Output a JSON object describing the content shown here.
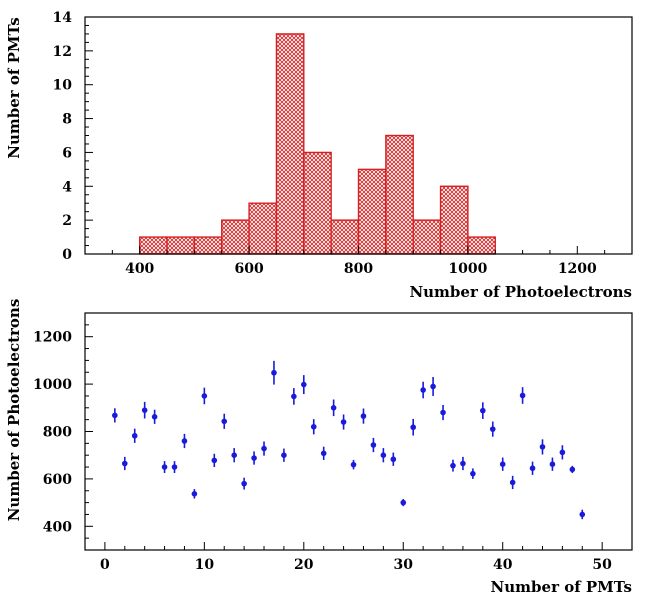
{
  "chart_data": [
    {
      "type": "histogram",
      "xlabel": "Number of Photoelectrons",
      "ylabel": "Number of PMTs",
      "xlim": [
        300,
        1300
      ],
      "ylim": [
        0,
        14
      ],
      "xticks": [
        400,
        600,
        800,
        1000,
        1200
      ],
      "yticks": [
        0,
        2,
        4,
        6,
        8,
        10,
        12,
        14
      ],
      "bin_edges": [
        400,
        450,
        500,
        550,
        600,
        650,
        700,
        750,
        800,
        850,
        900,
        950,
        1000,
        1050
      ],
      "counts": [
        1,
        1,
        1,
        2,
        3,
        13,
        6,
        2,
        5,
        7,
        2,
        4,
        1
      ],
      "color": "#d42020"
    },
    {
      "type": "scatter",
      "xlabel": "Number of PMTs",
      "ylabel": "Number of Photoelectrons",
      "xlim": [
        -2,
        53
      ],
      "ylim": [
        300,
        1300
      ],
      "xticks": [
        0,
        10,
        20,
        30,
        40,
        50
      ],
      "yticks": [
        400,
        600,
        800,
        1000,
        1200
      ],
      "x": [
        1,
        2,
        3,
        4,
        5,
        6,
        7,
        8,
        9,
        10,
        11,
        12,
        13,
        14,
        15,
        16,
        17,
        18,
        19,
        20,
        21,
        22,
        23,
        24,
        25,
        26,
        27,
        28,
        29,
        30,
        31,
        32,
        33,
        34,
        35,
        36,
        37,
        38,
        39,
        40,
        41,
        42,
        43,
        44,
        45,
        46,
        47,
        48
      ],
      "y": [
        868,
        665,
        782,
        890,
        862,
        650,
        650,
        760,
        537,
        950,
        678,
        843,
        700,
        580,
        688,
        728,
        1048,
        700,
        948,
        998,
        820,
        708,
        900,
        840,
        660,
        865,
        743,
        700,
        683,
        500,
        818,
        975,
        990,
        880,
        656,
        665,
        622,
        888,
        810,
        662,
        585,
        952,
        645,
        735,
        662,
        712,
        640,
        450
      ],
      "yerr": [
        30,
        28,
        30,
        35,
        30,
        25,
        25,
        30,
        20,
        35,
        28,
        32,
        30,
        25,
        28,
        30,
        50,
        28,
        35,
        40,
        32,
        28,
        35,
        32,
        20,
        32,
        30,
        30,
        28,
        15,
        35,
        35,
        40,
        32,
        25,
        28,
        22,
        35,
        32,
        28,
        28,
        35,
        28,
        32,
        28,
        30,
        15,
        20
      ],
      "color": "#1a1adc"
    }
  ]
}
